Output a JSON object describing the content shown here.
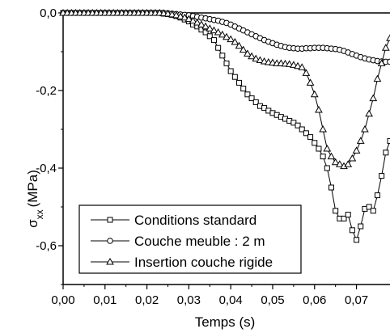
{
  "chart_data": {
    "type": "line",
    "title": "",
    "xlabel": "Temps (s)",
    "ylabel": {
      "symbol": "σ",
      "subscript": "xx",
      "unit": "(MPa)"
    },
    "xlim": [
      0.0,
      0.078
    ],
    "ylim": [
      -0.7,
      0.0
    ],
    "xticks": [
      "0,00",
      "0,01",
      "0,02",
      "0,03",
      "0,04",
      "0,05",
      "0,06",
      "0,07"
    ],
    "xtick_values": [
      0.0,
      0.01,
      0.02,
      0.03,
      0.04,
      0.05,
      0.06,
      0.07
    ],
    "yticks": [
      "0,0",
      "-0,2",
      "-0,4",
      "-0,6"
    ],
    "ytick_values": [
      0.0,
      -0.2,
      -0.4,
      -0.6
    ],
    "grid": false,
    "legend_position": "bottom-left",
    "series": [
      {
        "name": "Conditions standard",
        "marker": "square",
        "x": [
          0.0,
          0.001,
          0.002,
          0.003,
          0.004,
          0.005,
          0.006,
          0.007,
          0.008,
          0.009,
          0.01,
          0.011,
          0.012,
          0.013,
          0.014,
          0.015,
          0.016,
          0.017,
          0.018,
          0.019,
          0.02,
          0.021,
          0.022,
          0.023,
          0.024,
          0.025,
          0.026,
          0.027,
          0.028,
          0.029,
          0.03,
          0.031,
          0.032,
          0.033,
          0.034,
          0.035,
          0.036,
          0.037,
          0.038,
          0.039,
          0.04,
          0.041,
          0.042,
          0.043,
          0.044,
          0.045,
          0.046,
          0.047,
          0.048,
          0.049,
          0.05,
          0.051,
          0.052,
          0.053,
          0.054,
          0.055,
          0.056,
          0.057,
          0.058,
          0.059,
          0.06,
          0.061,
          0.062,
          0.063,
          0.064,
          0.065,
          0.066,
          0.067,
          0.068,
          0.069,
          0.07,
          0.071,
          0.072,
          0.073,
          0.074,
          0.075,
          0.076,
          0.077,
          0.078
        ],
        "y": [
          0.0,
          0.0,
          0.0,
          0.0,
          0.0,
          0.0,
          0.0,
          0.0,
          0.0,
          0.0,
          0.0,
          0.0,
          0.0,
          0.0,
          0.0,
          0.0,
          0.0,
          0.0,
          0.0,
          0.0,
          0.0,
          0.0,
          0.0,
          0.0,
          -0.002,
          -0.003,
          -0.005,
          -0.008,
          -0.012,
          -0.017,
          -0.022,
          -0.03,
          -0.035,
          -0.043,
          -0.05,
          -0.06,
          -0.07,
          -0.09,
          -0.11,
          -0.13,
          -0.15,
          -0.165,
          -0.18,
          -0.195,
          -0.21,
          -0.22,
          -0.23,
          -0.24,
          -0.245,
          -0.252,
          -0.258,
          -0.263,
          -0.268,
          -0.273,
          -0.278,
          -0.283,
          -0.29,
          -0.3,
          -0.31,
          -0.32,
          -0.335,
          -0.35,
          -0.37,
          -0.4,
          -0.45,
          -0.51,
          -0.53,
          -0.53,
          -0.52,
          -0.56,
          -0.585,
          -0.55,
          -0.505,
          -0.5,
          -0.51,
          -0.47,
          -0.42,
          -0.36,
          -0.33
        ]
      },
      {
        "name": "Couche meuble : 2 m",
        "marker": "circle",
        "x": [
          0.0,
          0.001,
          0.002,
          0.003,
          0.004,
          0.005,
          0.006,
          0.007,
          0.008,
          0.009,
          0.01,
          0.011,
          0.012,
          0.013,
          0.014,
          0.015,
          0.016,
          0.017,
          0.018,
          0.019,
          0.02,
          0.021,
          0.022,
          0.023,
          0.024,
          0.025,
          0.026,
          0.027,
          0.028,
          0.029,
          0.03,
          0.031,
          0.032,
          0.033,
          0.034,
          0.035,
          0.036,
          0.037,
          0.038,
          0.039,
          0.04,
          0.041,
          0.042,
          0.043,
          0.044,
          0.045,
          0.046,
          0.047,
          0.048,
          0.049,
          0.05,
          0.051,
          0.052,
          0.053,
          0.054,
          0.055,
          0.056,
          0.057,
          0.058,
          0.059,
          0.06,
          0.061,
          0.062,
          0.063,
          0.064,
          0.065,
          0.066,
          0.067,
          0.068,
          0.069,
          0.07,
          0.071,
          0.072,
          0.073,
          0.074,
          0.075,
          0.076,
          0.077,
          0.078
        ],
        "y": [
          0.0,
          0.0,
          0.0,
          0.0,
          0.0,
          0.0,
          0.0,
          0.0,
          0.0,
          0.0,
          0.0,
          0.0,
          0.0,
          0.0,
          0.0,
          0.0,
          0.0,
          0.0,
          0.0,
          0.0,
          0.0,
          0.0,
          0.0,
          0.0,
          0.0,
          -0.001,
          -0.002,
          -0.003,
          -0.004,
          -0.005,
          -0.006,
          -0.008,
          -0.01,
          -0.012,
          -0.014,
          -0.016,
          -0.018,
          -0.02,
          -0.023,
          -0.026,
          -0.03,
          -0.035,
          -0.04,
          -0.045,
          -0.05,
          -0.055,
          -0.06,
          -0.065,
          -0.07,
          -0.074,
          -0.078,
          -0.082,
          -0.085,
          -0.088,
          -0.09,
          -0.091,
          -0.092,
          -0.092,
          -0.091,
          -0.091,
          -0.09,
          -0.09,
          -0.09,
          -0.091,
          -0.092,
          -0.093,
          -0.095,
          -0.098,
          -0.102,
          -0.106,
          -0.11,
          -0.114,
          -0.117,
          -0.12,
          -0.122,
          -0.124,
          -0.125,
          -0.126,
          -0.126
        ]
      },
      {
        "name": "Insertion couche rigide",
        "marker": "triangle",
        "x": [
          0.0,
          0.001,
          0.002,
          0.003,
          0.004,
          0.005,
          0.006,
          0.007,
          0.008,
          0.009,
          0.01,
          0.011,
          0.012,
          0.013,
          0.014,
          0.015,
          0.016,
          0.017,
          0.018,
          0.019,
          0.02,
          0.021,
          0.022,
          0.023,
          0.024,
          0.025,
          0.026,
          0.027,
          0.028,
          0.029,
          0.03,
          0.031,
          0.032,
          0.033,
          0.034,
          0.035,
          0.036,
          0.037,
          0.038,
          0.039,
          0.04,
          0.041,
          0.042,
          0.043,
          0.044,
          0.045,
          0.046,
          0.047,
          0.048,
          0.049,
          0.05,
          0.051,
          0.052,
          0.053,
          0.054,
          0.055,
          0.056,
          0.057,
          0.058,
          0.059,
          0.06,
          0.061,
          0.062,
          0.063,
          0.064,
          0.065,
          0.066,
          0.067,
          0.068,
          0.069,
          0.07,
          0.071,
          0.072,
          0.073,
          0.074,
          0.075,
          0.076,
          0.077,
          0.078
        ],
        "y": [
          0.0,
          0.0,
          0.0,
          0.0,
          0.0,
          0.0,
          0.0,
          0.0,
          0.0,
          0.0,
          0.0,
          0.0,
          0.0,
          0.0,
          0.0,
          0.0,
          0.0,
          0.0,
          0.0,
          0.0,
          0.0,
          0.0,
          0.0,
          0.0,
          -0.001,
          -0.002,
          -0.004,
          -0.006,
          -0.009,
          -0.012,
          -0.016,
          -0.02,
          -0.025,
          -0.03,
          -0.035,
          -0.04,
          -0.045,
          -0.05,
          -0.056,
          -0.062,
          -0.068,
          -0.075,
          -0.085,
          -0.095,
          -0.105,
          -0.112,
          -0.118,
          -0.122,
          -0.125,
          -0.127,
          -0.128,
          -0.13,
          -0.13,
          -0.131,
          -0.132,
          -0.134,
          -0.137,
          -0.14,
          -0.155,
          -0.18,
          -0.21,
          -0.25,
          -0.3,
          -0.35,
          -0.37,
          -0.385,
          -0.39,
          -0.395,
          -0.39,
          -0.375,
          -0.355,
          -0.33,
          -0.3,
          -0.26,
          -0.22,
          -0.17,
          -0.13,
          -0.09,
          -0.065
        ]
      }
    ]
  }
}
